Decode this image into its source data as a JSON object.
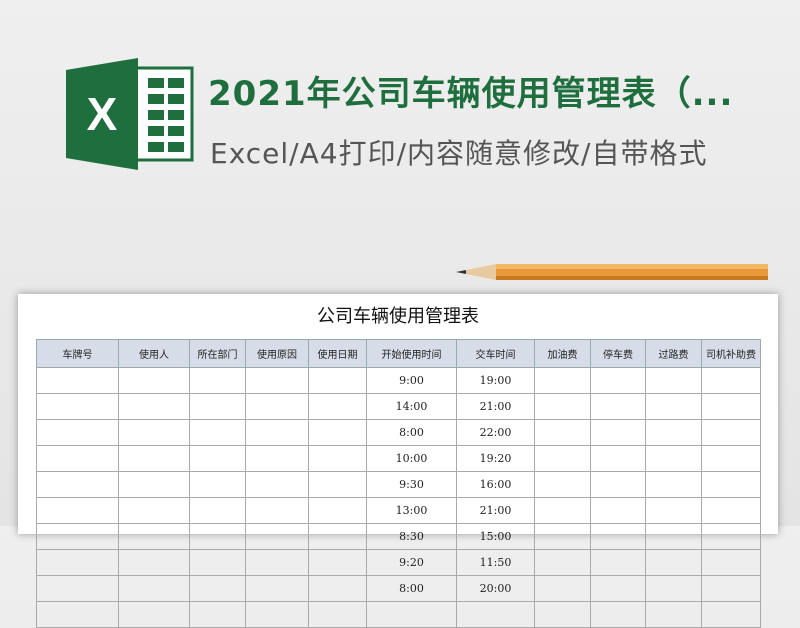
{
  "header": {
    "title": "2021年公司车辆使用管理表（...",
    "subtitle": "Excel/A4打印/内容随意修改/自带格式"
  },
  "sheet": {
    "title": "公司车辆使用管理表",
    "columns": [
      "车牌号",
      "使用人",
      "所在部门",
      "使用原因",
      "使用日期",
      "开始使用时间",
      "交车时间",
      "加油费",
      "停车费",
      "过路费",
      "司机补助费"
    ],
    "rows": [
      [
        "9:00",
        "19:00"
      ],
      [
        "14:00",
        "21:00"
      ],
      [
        "8:00",
        "22:00"
      ],
      [
        "10:00",
        "19:20"
      ],
      [
        "9:30",
        "16:00"
      ],
      [
        "13:00",
        "21:00"
      ],
      [
        "8:30",
        "15:00"
      ],
      [
        "9:20",
        "11:50"
      ],
      [
        "8:00",
        "20:00"
      ],
      [
        "",
        ""
      ]
    ]
  },
  "colors": {
    "brand": "#1e6e3e",
    "header_bg": "#d6dde8"
  }
}
